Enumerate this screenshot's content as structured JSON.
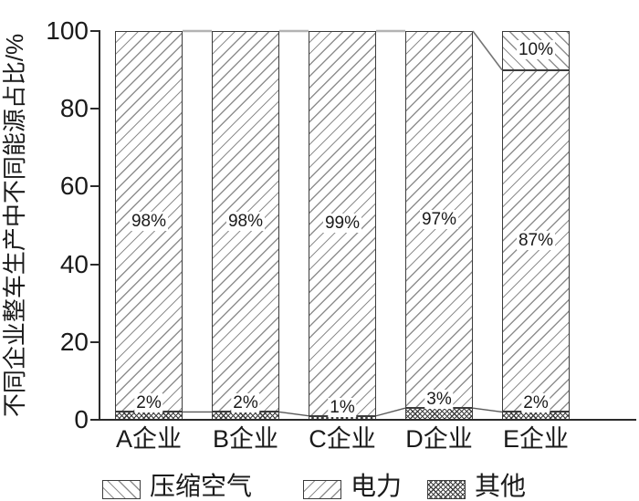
{
  "colors": {
    "background": "#ffffff",
    "text": "#1a1a1a",
    "bar_border": "#3c3c3c",
    "axis": "#2b2b2b",
    "hatch_line": "#8f8f8f",
    "crosshatch_line": "#3f3f3f",
    "connector_top": "#b3b3b3",
    "connector_diag": "#757575",
    "connector_bottom": "#595959"
  },
  "y_axis": {
    "title": "不同企业整车生产中不同能源占比/%",
    "ticks": [
      0,
      20,
      40,
      60,
      80,
      100
    ]
  },
  "legend": [
    {
      "label": "压缩空气",
      "pattern": "backslash"
    },
    {
      "label": "电力",
      "pattern": "slash"
    },
    {
      "label": "其他",
      "pattern": "cross"
    }
  ],
  "chart_data": {
    "type": "bar",
    "stacked": true,
    "title": "",
    "xlabel": "",
    "ylabel": "不同企业整车生产中不同能源占比/%",
    "ylim": [
      0,
      100
    ],
    "grid": false,
    "legend_position": "bottom",
    "categories": [
      "A企业",
      "B企业",
      "C企业",
      "D企业",
      "E企业"
    ],
    "series": [
      {
        "name": "其他",
        "pattern": "cross",
        "values": [
          2,
          2,
          1,
          3,
          2
        ],
        "labels": [
          "2%",
          "2%",
          "1%",
          "3%",
          "2%"
        ]
      },
      {
        "name": "电力",
        "pattern": "slash",
        "values": [
          98,
          98,
          99,
          97,
          87
        ],
        "labels": [
          "98%",
          "98%",
          "99%",
          "97%",
          "87%"
        ]
      },
      {
        "name": "压缩空气",
        "pattern": "backslash",
        "values": [
          0,
          0,
          0,
          0,
          10
        ],
        "labels": [
          "",
          "",
          "",
          "",
          "10%"
        ]
      }
    ],
    "connector_lines": "segment boundaries joined across bar gaps"
  }
}
